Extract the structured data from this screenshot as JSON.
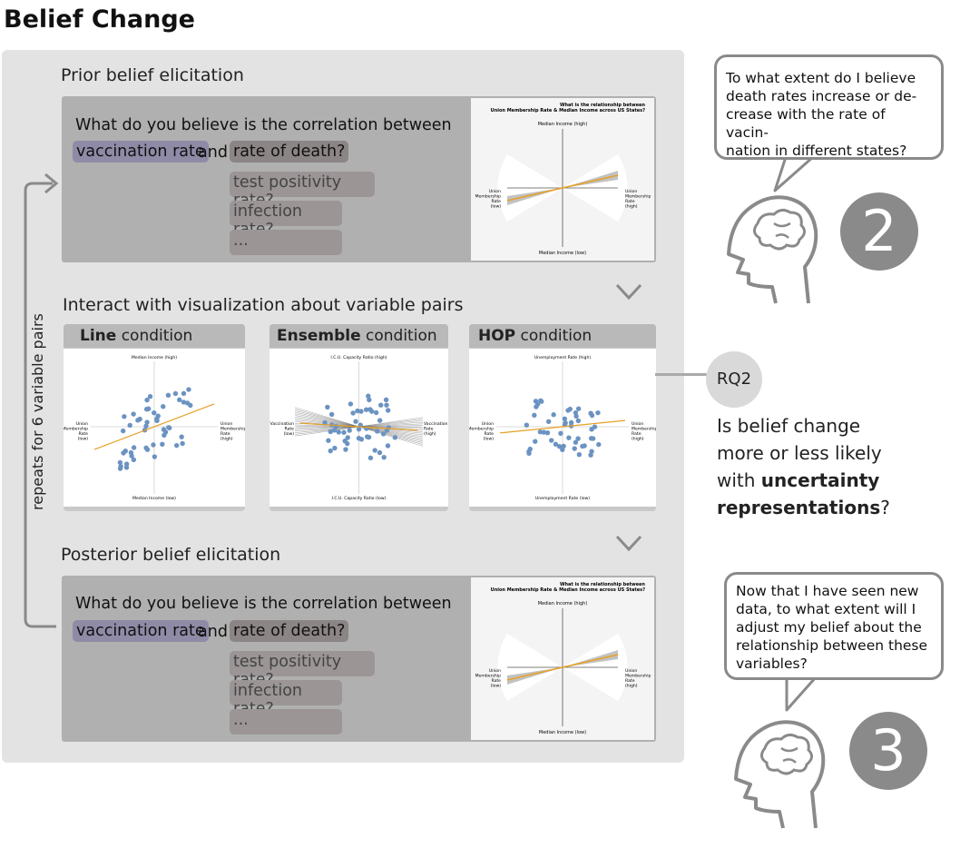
{
  "title": "Belief Change",
  "prior": {
    "heading": "Prior belief elicitation",
    "question": "What do you believe is the correlation between",
    "var1": "vaccination rate",
    "and_word": "and",
    "var2": "rate of death?",
    "options": [
      "test positivity rate?",
      "infection rate?",
      "..."
    ]
  },
  "interact_heading": "Interact with visualization about variable pairs",
  "conditions": [
    {
      "bold": "Line",
      "rest": " condition"
    },
    {
      "bold": "Ensemble",
      "rest": " condition"
    },
    {
      "bold": "HOP",
      "rest": " condition"
    }
  ],
  "posterior": {
    "heading": "Posterior belief elicitation",
    "question": "What do you believe is the correlation between",
    "var1": "vaccination rate",
    "and_word": "and",
    "var2": "rate of death?",
    "options": [
      "test positivity rate?",
      "infection rate?",
      "..."
    ]
  },
  "loop_label": "repeats for  6 variable pairs",
  "viz_elicit": {
    "title1": "What is the relationship between",
    "title2": "Union Membership Rate & Median Income across US States?",
    "y_top": "Median Income (high)",
    "y_bottom": "Median Income (low)",
    "x_left": [
      "Union",
      "Membership",
      "Rate",
      "(low)"
    ],
    "x_right": [
      "Union",
      "Membership",
      "Rate",
      "(high)"
    ]
  },
  "viz_line": {
    "y_top": "Median Income (high)",
    "y_bottom": "Median Income (low)",
    "x_left": [
      "Union",
      "Membership",
      "Rate",
      "(low)"
    ],
    "x_right": [
      "Union",
      "Membership",
      "Rate",
      "(high)"
    ]
  },
  "viz_ensemble": {
    "y_top": "I.C.U. Capacity Ratio (high)",
    "y_bottom": "I.C.U. Capacity Ratio (low)",
    "x_left": [
      "Vaccination",
      "Rate",
      "(low)"
    ],
    "x_right": [
      "Vaccination",
      "Rate",
      "(high)"
    ]
  },
  "viz_hop": {
    "y_top": "Unemployment Rate (high)",
    "y_bottom": "Unemployment Rate (low)",
    "x_left": [
      "Union",
      "Membership",
      "Rate",
      "(low)"
    ],
    "x_right": [
      "Union",
      "Membership",
      "Rate",
      "(high)"
    ]
  },
  "bubble2": {
    "lines": [
      "To what extent do I believe",
      "death rates increase or de-",
      "crease with the rate of vacin-",
      "nation in different states?"
    ],
    "number": "2"
  },
  "bubble3": {
    "lines": [
      "Now that I have seen new",
      "data, to what extent will I",
      "adjust my belief about the",
      "relationship between these",
      "variables?"
    ],
    "number": "3"
  },
  "rq": {
    "label": "RQ2",
    "line1": "Is belief change",
    "line2": "more or less likely",
    "line3_pre": "with ",
    "line3_bold": "uncertainty",
    "line4_bold": "representations",
    "line4_post": "?"
  },
  "colors": {
    "panel": "#e3e3e3",
    "card": "#b0b0b0",
    "vacc_chip": "#8f8ba7",
    "death_chip": "#8c8585",
    "dot": "#6b93c2",
    "line": "#e7a126",
    "icon": "#8a8a8a"
  }
}
